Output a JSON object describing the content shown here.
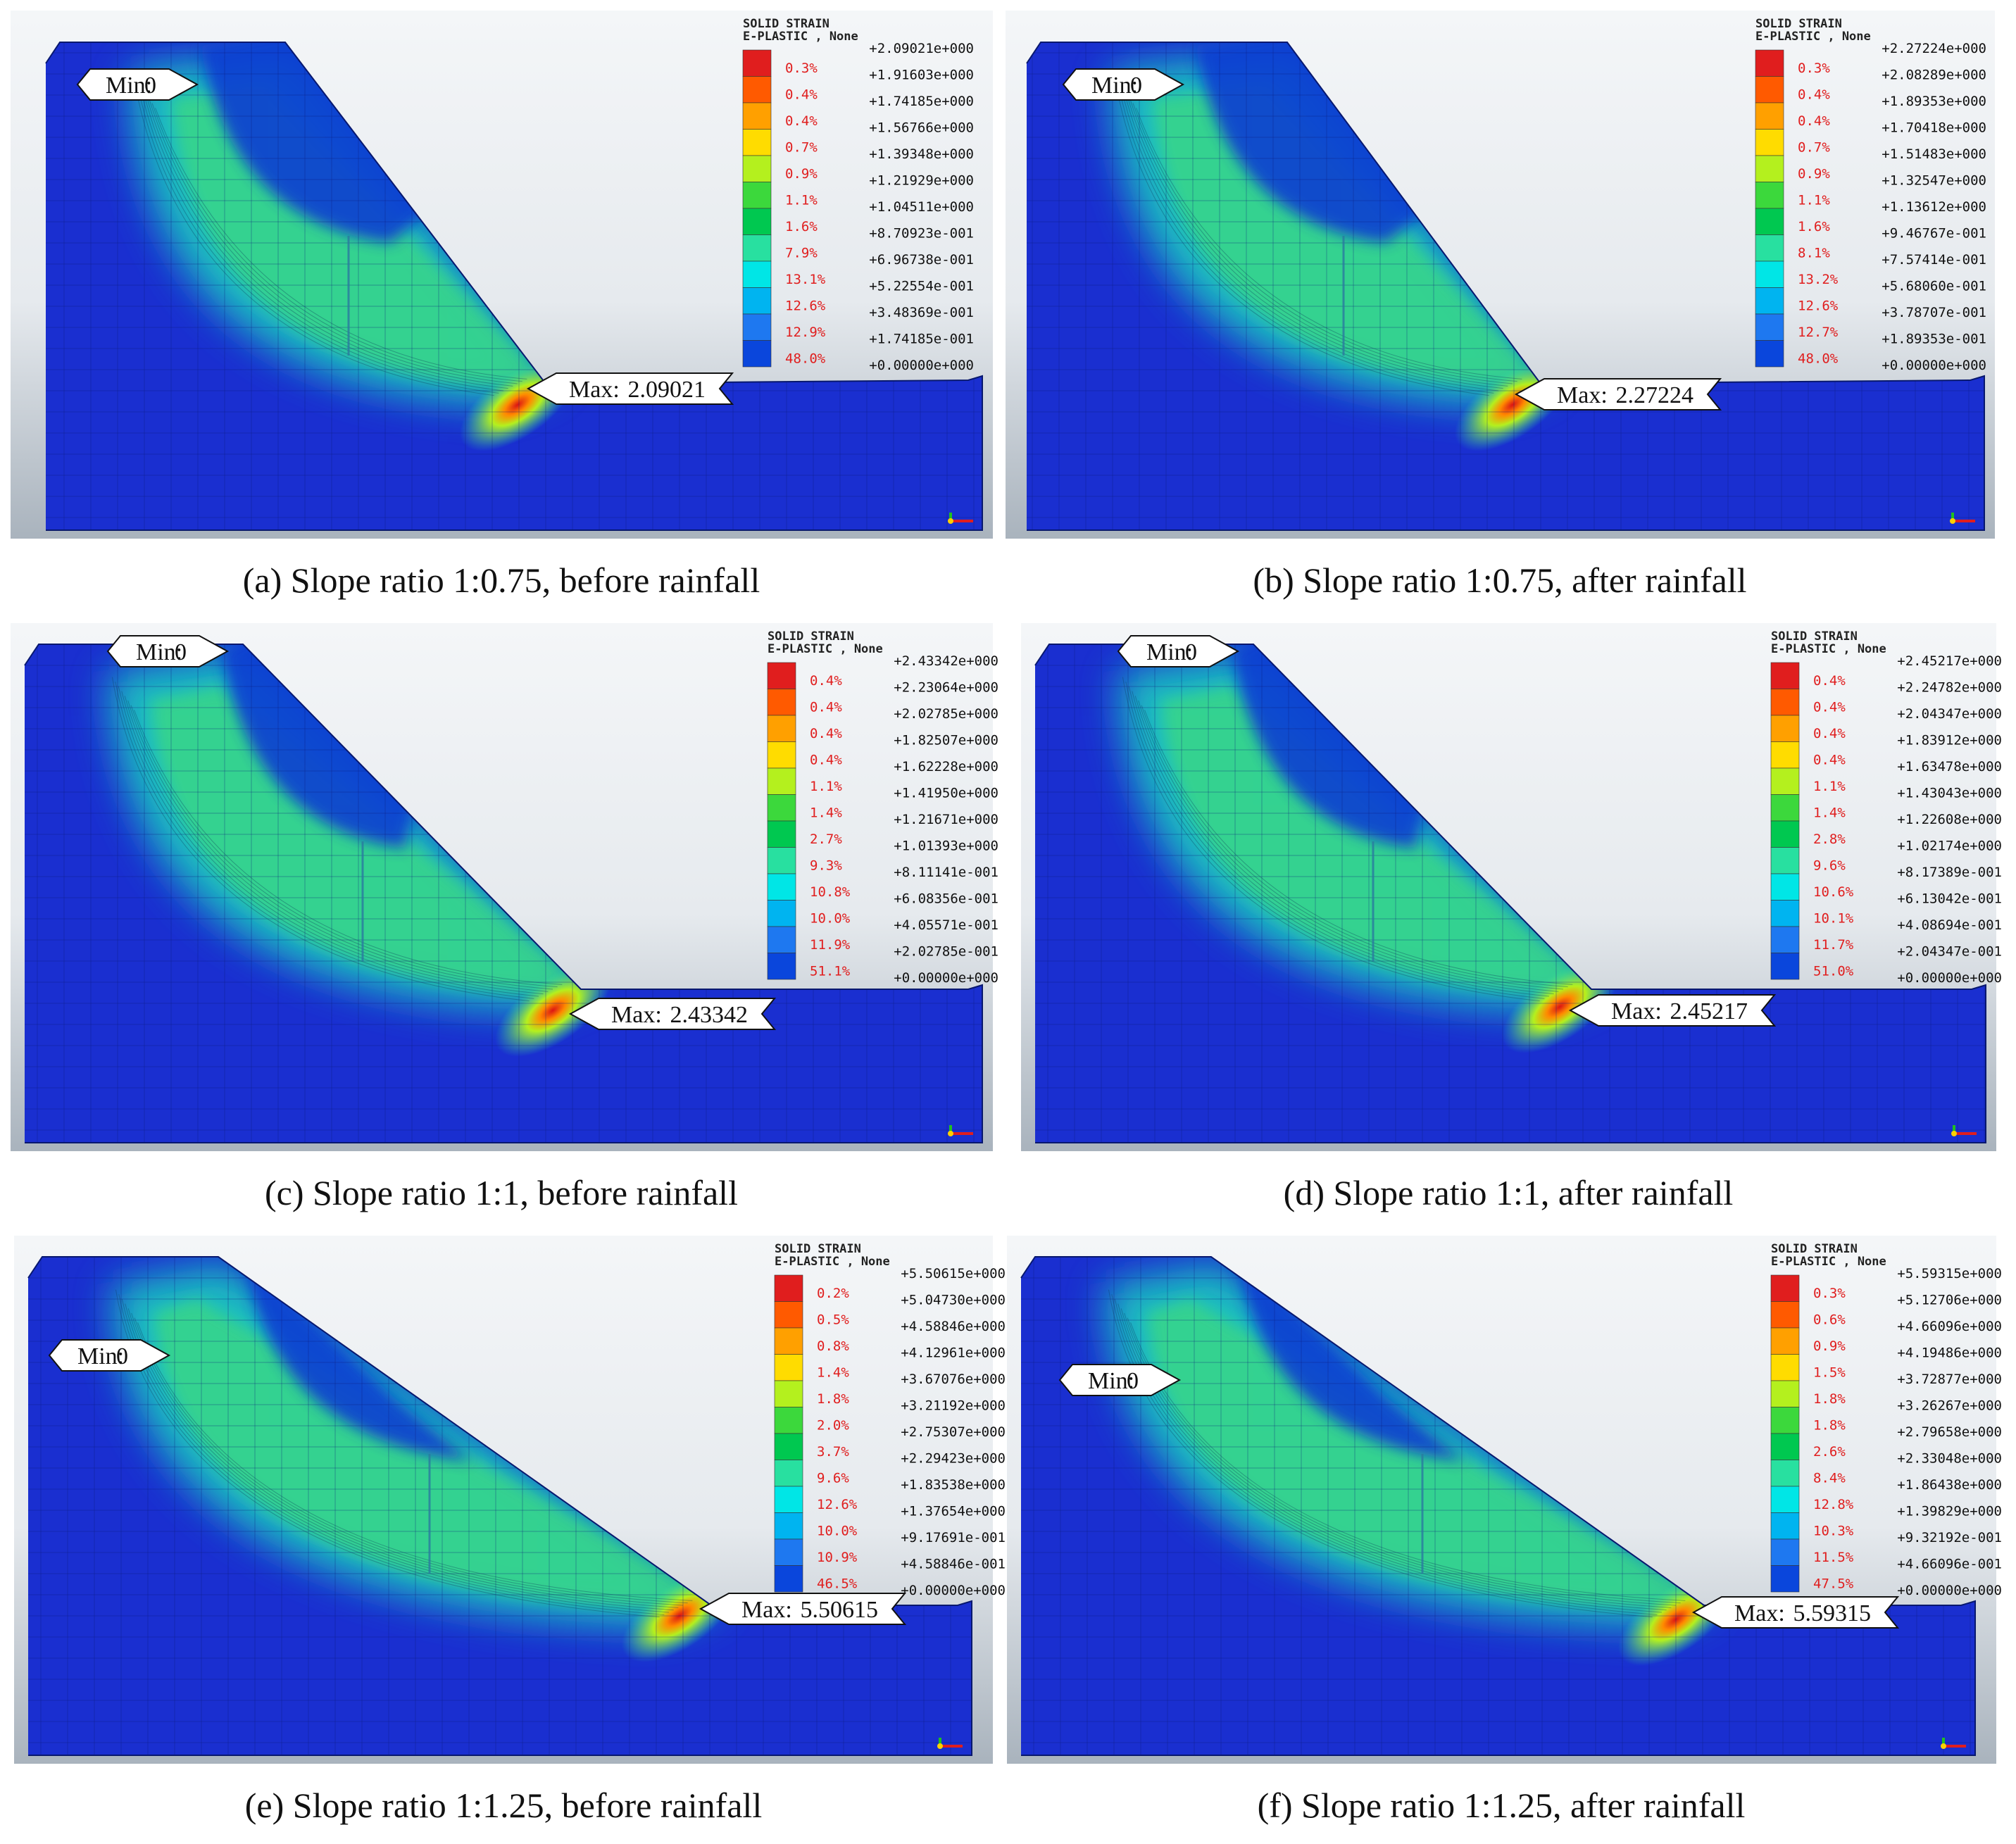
{
  "legend_header": {
    "line1": "SOLID STRAIN",
    "line2": "E-PLASTIC , None"
  },
  "min_prefix": "Min:",
  "max_prefix": "Max:",
  "colors": {
    "legend_bands": [
      "#e01e1e",
      "#ff5a00",
      "#ffa000",
      "#ffdc00",
      "#b4f01e",
      "#3cd83c",
      "#00c850",
      "#28e0a0",
      "#00e6e6",
      "#00b4f0",
      "#1e78f0",
      "#0a46dc",
      "#0014c8"
    ],
    "mesh_background": "#1a2fd0",
    "percent_text": "#e01e1e"
  },
  "panels": [
    {
      "id": "a",
      "caption": "(a) Slope ratio 1:0.75, before rainfall",
      "min": "0",
      "max": "2.09021",
      "values": [
        "+2.09021e+000",
        "+1.91603e+000",
        "+1.74185e+000",
        "+1.56766e+000",
        "+1.39348e+000",
        "+1.21929e+000",
        "+1.04511e+000",
        "+8.70923e-001",
        "+6.96738e-001",
        "+5.22554e-001",
        "+3.48369e-001",
        "+1.74185e-001",
        "+0.00000e+000"
      ],
      "percents": [
        "0.3%",
        "0.4%",
        "0.4%",
        "0.7%",
        "0.9%",
        "1.1%",
        "1.6%",
        "7.9%",
        "13.1%",
        "12.6%",
        "12.9%",
        "48.0%"
      ]
    },
    {
      "id": "b",
      "caption": "(b) Slope ratio 1:0.75, after rainfall",
      "min": "0",
      "max": "2.27224",
      "values": [
        "+2.27224e+000",
        "+2.08289e+000",
        "+1.89353e+000",
        "+1.70418e+000",
        "+1.51483e+000",
        "+1.32547e+000",
        "+1.13612e+000",
        "+9.46767e-001",
        "+7.57414e-001",
        "+5.68060e-001",
        "+3.78707e-001",
        "+1.89353e-001",
        "+0.00000e+000"
      ],
      "percents": [
        "0.3%",
        "0.4%",
        "0.4%",
        "0.7%",
        "0.9%",
        "1.1%",
        "1.6%",
        "8.1%",
        "13.2%",
        "12.6%",
        "12.7%",
        "48.0%"
      ]
    },
    {
      "id": "c",
      "caption": "(c) Slope ratio 1:1, before rainfall",
      "min": "0",
      "max": "2.43342",
      "values": [
        "+2.43342e+000",
        "+2.23064e+000",
        "+2.02785e+000",
        "+1.82507e+000",
        "+1.62228e+000",
        "+1.41950e+000",
        "+1.21671e+000",
        "+1.01393e+000",
        "+8.11141e-001",
        "+6.08356e-001",
        "+4.05571e-001",
        "+2.02785e-001",
        "+0.00000e+000"
      ],
      "percents": [
        "0.4%",
        "0.4%",
        "0.4%",
        "0.4%",
        "1.1%",
        "1.4%",
        "2.7%",
        "9.3%",
        "10.8%",
        "10.0%",
        "11.9%",
        "51.1%"
      ]
    },
    {
      "id": "d",
      "caption": "(d) Slope ratio 1:1, after rainfall",
      "min": "0",
      "max": "2.45217",
      "values": [
        "+2.45217e+000",
        "+2.24782e+000",
        "+2.04347e+000",
        "+1.83912e+000",
        "+1.63478e+000",
        "+1.43043e+000",
        "+1.22608e+000",
        "+1.02174e+000",
        "+8.17389e-001",
        "+6.13042e-001",
        "+4.08694e-001",
        "+2.04347e-001",
        "+0.00000e+000"
      ],
      "percents": [
        "0.4%",
        "0.4%",
        "0.4%",
        "0.4%",
        "1.1%",
        "1.4%",
        "2.8%",
        "9.6%",
        "10.6%",
        "10.1%",
        "11.7%",
        "51.0%"
      ]
    },
    {
      "id": "e",
      "caption": "(e) Slope ratio 1:1.25, before rainfall",
      "min": "0",
      "max": "5.50615",
      "values": [
        "+5.50615e+000",
        "+5.04730e+000",
        "+4.58846e+000",
        "+4.12961e+000",
        "+3.67076e+000",
        "+3.21192e+000",
        "+2.75307e+000",
        "+2.29423e+000",
        "+1.83538e+000",
        "+1.37654e+000",
        "+9.17691e-001",
        "+4.58846e-001",
        "+0.00000e+000"
      ],
      "percents": [
        "0.2%",
        "0.5%",
        "0.8%",
        "1.4%",
        "1.8%",
        "2.0%",
        "3.7%",
        "9.6%",
        "12.6%",
        "10.0%",
        "10.9%",
        "46.5%"
      ]
    },
    {
      "id": "f",
      "caption": "(f) Slope ratio 1:1.25, after rainfall",
      "min": "0",
      "max": "5.59315",
      "values": [
        "+5.59315e+000",
        "+5.12706e+000",
        "+4.66096e+000",
        "+4.19486e+000",
        "+3.72877e+000",
        "+3.26267e+000",
        "+2.79658e+000",
        "+2.33048e+000",
        "+1.86438e+000",
        "+1.39829e+000",
        "+9.32192e-001",
        "+4.66096e-001",
        "+0.00000e+000"
      ],
      "percents": [
        "0.3%",
        "0.6%",
        "0.9%",
        "1.5%",
        "1.8%",
        "1.8%",
        "2.6%",
        "8.4%",
        "12.8%",
        "10.3%",
        "11.5%",
        "47.5%"
      ]
    }
  ]
}
